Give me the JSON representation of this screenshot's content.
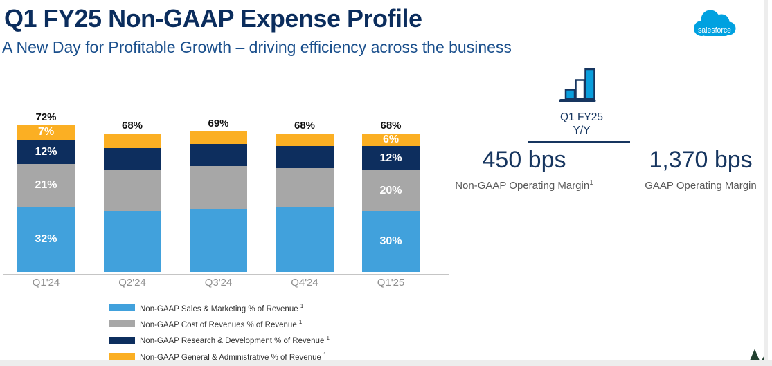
{
  "slide": {
    "title": "Q1 FY25 Non-GAAP Expense Profile",
    "subtitle": "A New Day for Profitable Growth – driving efficiency across the business"
  },
  "logo": {
    "text": "salesforce",
    "color": "#00A1E0"
  },
  "kpi": {
    "icon": "growth-bars-icon",
    "period": "Q1 FY25",
    "comparison": "Y/Y",
    "items": [
      {
        "value": "450 bps",
        "label": "Non-GAAP Operating Margin",
        "superscript": "1"
      },
      {
        "value": "1,370 bps",
        "label": "GAAP Operating Margin",
        "superscript": ""
      }
    ]
  },
  "chart_data": {
    "type": "bar",
    "stacked": true,
    "unit": "%",
    "grid": false,
    "y_axis_hidden": true,
    "legend_position": "bottom-left",
    "categories": [
      "Q1'24",
      "Q2'24",
      "Q3'24",
      "Q4'24",
      "Q1'25"
    ],
    "totals": [
      "72%",
      "68%",
      "69%",
      "68%",
      "68%"
    ],
    "series": [
      {
        "name": "Non-GAAP Sales & Marketing % of Revenue",
        "superscript": "1",
        "color": "#41A1DC",
        "values": [
          32,
          30,
          31,
          32,
          30
        ],
        "bar_labels": [
          "32%",
          "",
          "",
          "",
          "30%"
        ]
      },
      {
        "name": "Non-GAAP Cost of Revenues % of Revenue",
        "superscript": "1",
        "color": "#A7A7A7",
        "values": [
          21,
          20,
          21,
          19,
          20
        ],
        "bar_labels": [
          "21%",
          "",
          "",
          "",
          "20%"
        ]
      },
      {
        "name": "Non-GAAP Research & Development % of Revenue",
        "superscript": "1",
        "color": "#0D2E5E",
        "values": [
          12,
          11,
          11,
          11,
          12
        ],
        "bar_labels": [
          "12%",
          "",
          "",
          "",
          "12%"
        ]
      },
      {
        "name": "Non-GAAP General & Administrative % of Revenue",
        "superscript": "1",
        "color": "#FBAF23",
        "values": [
          7,
          7,
          6,
          6,
          6
        ],
        "bar_labels": [
          "7%",
          "",
          "",
          "",
          "6%"
        ]
      }
    ],
    "colors": {
      "navy_text": "#16355F",
      "title_navy": "#0B2D5D",
      "subtitle_blue": "#1A4F8C",
      "icon_blue": "#0A9EDC",
      "tree_green": "#21402F"
    }
  }
}
